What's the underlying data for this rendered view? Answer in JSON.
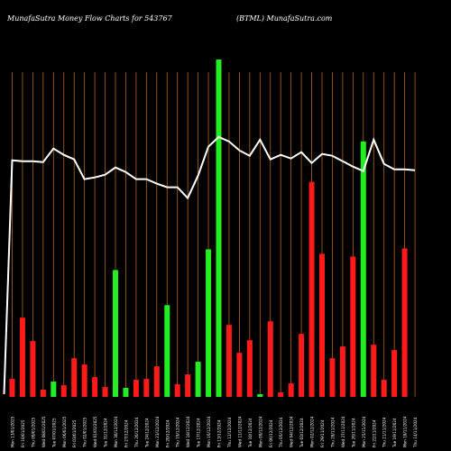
{
  "header": {
    "left": "MunafaSutra  Money Flow  Charts for 543767",
    "right": "(BTML) MunafaSutra.com"
  },
  "colors": {
    "background": "#000000",
    "up": "#22ee22",
    "down": "#ff1a1a",
    "grid": "#b5651d",
    "line": "#ffffff"
  },
  "chart_data": {
    "type": "bar",
    "categories": [
      "Mon 13/01/2025",
      "Fri 10/01/2025",
      "Thu 09/01/2025",
      "Wed 08/01/2025",
      "Tue 07/01/2025",
      "Mon 06/01/2025",
      "Fri 03/01/2025",
      "Thu 02/01/2025",
      "Wed 01/01/2025",
      "Tue 31/12/2024",
      "Mon 30/12/2024",
      "Fri 27/12/2024",
      "Thu 26/12/2024",
      "Tue 24/12/2024",
      "Mon 23/12/2024",
      "Fri 20/12/2024",
      "Thu 19/12/2024",
      "Wed 18/12/2024",
      "Tue 17/12/2024",
      "Mon 16/12/2024",
      "Fri 13/12/2024",
      "Thu 12/12/2024",
      "Wed 11/12/2024",
      "Tue 10/12/2024",
      "Mon 09/12/2024",
      "Fri 06/12/2024",
      "Thu 05/12/2024",
      "Wed 04/12/2024",
      "Tue 03/12/2024",
      "Mon 02/12/2024",
      "Fri 29/11/2024",
      "Thu 28/11/2024",
      "Wed 27/11/2024",
      "Tue 26/11/2024",
      "Mon 25/11/2024",
      "Fri 22/11/2024",
      "Thu 21/11/2024",
      "Tue 19/11/2024",
      "Mon 18/11/2024",
      "Thu 14/11/2024"
    ],
    "x_tick_labels": [
      "Mon 13/01/2025",
      "Fri 10/01/2025",
      "Thu 09/01/2025",
      "Wed 08/01/2025",
      "Tue 07/01/2025",
      "Mon 06/01/2025",
      "Fri 03/01/2025",
      "Thu 02/01/2025",
      "Wed 01/01/2025",
      "Tue 31/12/2024",
      "Mon 30/12/2024",
      "Fri 27/12/2024",
      "Thu 26/12/2024",
      "Tue 24/12/2024",
      "Mon 23/12/2024",
      "Fri 20/12/2024",
      "Thu 19/12/2024",
      "Wed 18/12/2024",
      "Tue 17/12/2024",
      "Mon 16/12/2024",
      "Fri 13/12/2024",
      "Thu 12/12/2024",
      "Wed 11/12/2024",
      "Tue 10/12/2024",
      "Mon 09/12/2024",
      "Fri 06/12/2024",
      "Thu 05/12/2024",
      "Wed 04/12/2024",
      "Tue 03/12/2024",
      "Mon 02/12/2024",
      "Fri 29/11/2024",
      "Thu 28/11/2024",
      "Wed 27/11/2024",
      "Tue 26/11/2024",
      "Mon 25/11/2024",
      "Fri 22/11/2024",
      "Thu 21/11/2024",
      "Tue 19/11/2024",
      "Mon 18/11/2024",
      "Thu 14/11/2024"
    ],
    "bar_values": [
      20,
      88,
      62,
      8,
      17,
      13,
      43,
      36,
      22,
      11,
      141,
      10,
      19,
      20,
      34,
      102,
      14,
      25,
      39,
      164,
      375,
      80,
      49,
      63,
      3,
      84,
      5,
      15,
      70,
      239,
      159,
      43,
      56,
      156,
      284,
      58,
      19,
      52,
      165,
      0
    ],
    "bar_colors": [
      "down",
      "down",
      "down",
      "down",
      "up",
      "down",
      "down",
      "down",
      "down",
      "down",
      "up",
      "up",
      "down",
      "down",
      "down",
      "up",
      "down",
      "down",
      "up",
      "up",
      "up",
      "down",
      "down",
      "down",
      "up",
      "down",
      "down",
      "down",
      "down",
      "down",
      "down",
      "down",
      "down",
      "down",
      "up",
      "down",
      "down",
      "down",
      "down",
      "none"
    ],
    "line_series": {
      "values": [
        263,
        262,
        262,
        261,
        276,
        269,
        264,
        242,
        244,
        247,
        255,
        250,
        242,
        242,
        237,
        233,
        233,
        221,
        246,
        278,
        289,
        284,
        274,
        268,
        286,
        264,
        269,
        265,
        272,
        260,
        270,
        268,
        262,
        256,
        251,
        286,
        259,
        253,
        253,
        252
      ]
    },
    "ylim": [
      0,
      375
    ]
  }
}
